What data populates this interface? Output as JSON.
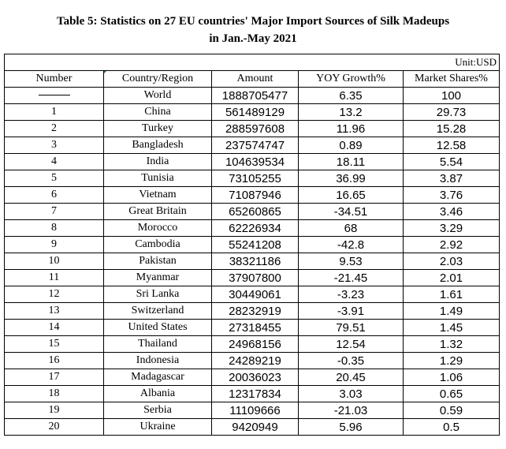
{
  "title": {
    "line1": "Table 5: Statistics on 27 EU countries' Major Import Sources of Silk Madeups",
    "line2": "in Jan.-May 2021"
  },
  "unit": "Unit:USD",
  "columns": [
    "Number",
    "Country/Region",
    "Amount",
    "YOY Growth%",
    "Market Shares%"
  ],
  "total_row": {
    "number": "",
    "country": "World",
    "amount": "1888705477",
    "growth": "6.35",
    "share": "100"
  },
  "rows": [
    {
      "number": "1",
      "country": "China",
      "amount": "561489129",
      "growth": "13.2",
      "share": "29.73"
    },
    {
      "number": "2",
      "country": "Turkey",
      "amount": "288597608",
      "growth": "11.96",
      "share": "15.28"
    },
    {
      "number": "3",
      "country": "Bangladesh",
      "amount": "237574747",
      "growth": "0.89",
      "share": "12.58"
    },
    {
      "number": "4",
      "country": "India",
      "amount": "104639534",
      "growth": "18.11",
      "share": "5.54"
    },
    {
      "number": "5",
      "country": "Tunisia",
      "amount": "73105255",
      "growth": "36.99",
      "share": "3.87"
    },
    {
      "number": "6",
      "country": "Vietnam",
      "amount": "71087946",
      "growth": "16.65",
      "share": "3.76"
    },
    {
      "number": "7",
      "country": "Great Britain",
      "amount": "65260865",
      "growth": "-34.51",
      "share": "3.46"
    },
    {
      "number": "8",
      "country": "Morocco",
      "amount": "62226934",
      "growth": "68",
      "share": "3.29"
    },
    {
      "number": "9",
      "country": "Cambodia",
      "amount": "55241208",
      "growth": "-42.8",
      "share": "2.92"
    },
    {
      "number": "10",
      "country": "Pakistan",
      "amount": "38321186",
      "growth": "9.53",
      "share": "2.03"
    },
    {
      "number": "11",
      "country": "Myanmar",
      "amount": "37907800",
      "growth": "-21.45",
      "share": "2.01"
    },
    {
      "number": "12",
      "country": "Sri Lanka",
      "amount": "30449061",
      "growth": "-3.23",
      "share": "1.61"
    },
    {
      "number": "13",
      "country": "Switzerland",
      "amount": "28232919",
      "growth": "-3.91",
      "share": "1.49"
    },
    {
      "number": "14",
      "country": "United States",
      "amount": "27318455",
      "growth": "79.51",
      "share": "1.45"
    },
    {
      "number": "15",
      "country": "Thailand",
      "amount": "24968156",
      "growth": "12.54",
      "share": "1.32"
    },
    {
      "number": "16",
      "country": "Indonesia",
      "amount": "24289219",
      "growth": "-0.35",
      "share": "1.29"
    },
    {
      "number": "17",
      "country": "Madagascar",
      "amount": "20036023",
      "growth": "20.45",
      "share": "1.06"
    },
    {
      "number": "18",
      "country": "Albania",
      "amount": "12317834",
      "growth": "3.03",
      "share": "0.65"
    },
    {
      "number": "19",
      "country": "Serbia",
      "amount": "11109666",
      "growth": "-21.03",
      "share": "0.59"
    },
    {
      "number": "20",
      "country": "Ukraine",
      "amount": "9420949",
      "growth": "5.96",
      "share": "0.5"
    }
  ]
}
